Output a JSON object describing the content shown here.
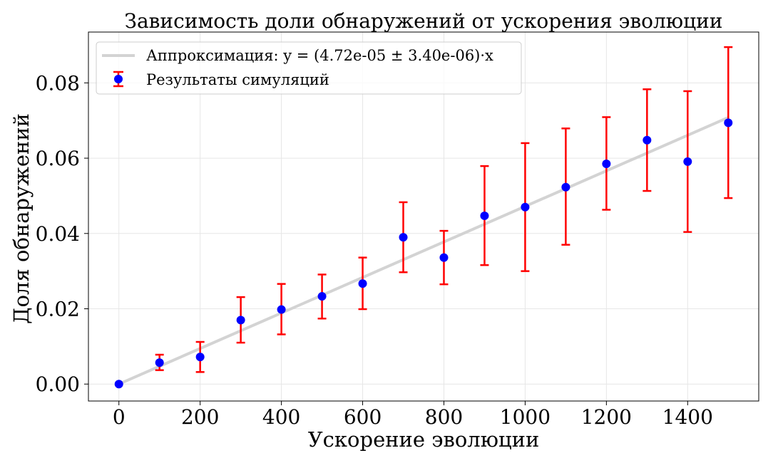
{
  "chart_data": {
    "type": "scatter",
    "title": "Зависимость доли обнаружений от ускорения эволюции",
    "xlabel": "Ускорение эволюции",
    "ylabel": "Доля обнаружений",
    "xlim": [
      -75,
      1575
    ],
    "ylim": [
      -0.0045,
      0.0935
    ],
    "xticks": [
      0,
      200,
      400,
      600,
      800,
      1000,
      1200,
      1400
    ],
    "xtick_labels": [
      "0",
      "200",
      "400",
      "600",
      "800",
      "1000",
      "1200",
      "1400"
    ],
    "yticks": [
      0.0,
      0.02,
      0.04,
      0.06,
      0.08
    ],
    "ytick_labels": [
      "0.00",
      "0.02",
      "0.04",
      "0.06",
      "0.08"
    ],
    "grid": true,
    "legend_position": "top-left",
    "series": [
      {
        "name": "Результаты симуляций",
        "kind": "errorbar-points",
        "color": "#0000ff",
        "error_color": "#ff0000",
        "x": [
          0,
          100,
          200,
          300,
          400,
          500,
          600,
          700,
          800,
          900,
          1000,
          1100,
          1200,
          1300,
          1400,
          1500
        ],
        "y": [
          0.0,
          0.0057,
          0.0072,
          0.017,
          0.0198,
          0.0233,
          0.0267,
          0.039,
          0.0336,
          0.0447,
          0.047,
          0.0523,
          0.0585,
          0.0648,
          0.0591,
          0.0694
        ],
        "y_lower": [
          0.0,
          0.0037,
          0.0032,
          0.011,
          0.0132,
          0.0174,
          0.0199,
          0.0297,
          0.0265,
          0.0316,
          0.03,
          0.037,
          0.0463,
          0.0513,
          0.0404,
          0.0494
        ],
        "y_upper": [
          0.0,
          0.0078,
          0.0112,
          0.0231,
          0.0266,
          0.0291,
          0.0336,
          0.0483,
          0.0407,
          0.0579,
          0.064,
          0.0679,
          0.0709,
          0.0783,
          0.0778,
          0.0895
        ]
      },
      {
        "name": "Аппроксимация: y = (4.72e-05 ± 3.40e-06)·x",
        "kind": "line",
        "color": "#d3d3d3",
        "x": [
          0,
          1500
        ],
        "y": [
          0.0,
          0.0708
        ]
      }
    ]
  }
}
